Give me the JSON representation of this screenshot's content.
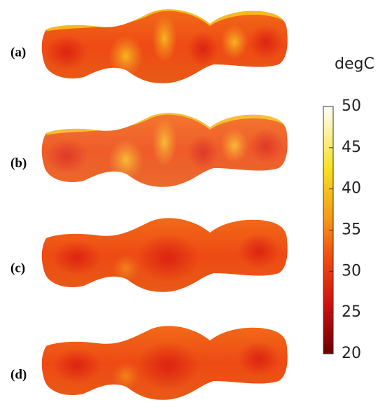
{
  "panels": [
    {
      "label": "(a)"
    },
    {
      "label": "(b)"
    },
    {
      "label": "(c)"
    },
    {
      "label": "(d)"
    }
  ],
  "colorbar": {
    "unit": "degC",
    "lim": [
      20,
      50
    ],
    "ticks": [
      20,
      25,
      30,
      35,
      40,
      45,
      50
    ]
  }
}
